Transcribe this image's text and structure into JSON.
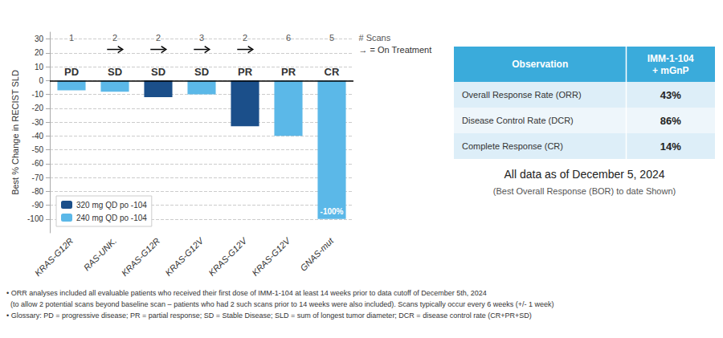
{
  "chart_data": {
    "type": "bar",
    "categories": [
      "KRAS-G12R",
      "RAS-UNK.",
      "KRAS-G12R",
      "KRAS-G12V",
      "KRAS-G12V",
      "KRAS-G12V",
      "GNAS-mut"
    ],
    "series": [
      {
        "name": "320 mg QD po -104",
        "color": "#1B4F8A",
        "values": [
          null,
          null,
          -12,
          null,
          -33,
          null,
          null
        ]
      },
      {
        "name": "240 mg QD po -104",
        "color": "#5BB8E8",
        "values": [
          -7,
          -8,
          null,
          -10,
          null,
          -40,
          -100
        ],
        "value_labels": [
          null,
          null,
          null,
          null,
          null,
          null,
          "-100%"
        ]
      }
    ],
    "ylabel": "Best % Change in RECIST SLD",
    "ylim": [
      -110,
      35
    ],
    "yticks": [
      -100,
      -90,
      -80,
      -70,
      -60,
      -50,
      -40,
      -30,
      -20,
      -10,
      0,
      10,
      20,
      30
    ],
    "grid": true,
    "legend": "lower left",
    "annotations": {
      "responses": [
        "PD",
        "SD",
        "SD",
        "SD",
        "PR",
        "PR",
        "CR"
      ],
      "scans": [
        1,
        2,
        2,
        3,
        2,
        6,
        5
      ],
      "scans_label": "# Scans",
      "on_treatment": [
        false,
        true,
        true,
        true,
        true,
        false,
        false
      ],
      "on_treatment_label": "→ = On Treatment"
    },
    "table": {
      "columns": [
        "Observation",
        "IMM-1-104\n+ mGnP"
      ],
      "rows": [
        [
          "Overall Response Rate (ORR)",
          "43%"
        ],
        [
          "Disease Control Rate (DCR)",
          "86%"
        ],
        [
          "Complete Response (CR)",
          "14%"
        ]
      ],
      "header_color": "#3AABDB",
      "row_colors": [
        "#DDEEF8",
        "#EEF6FB",
        "#DDEEF8"
      ]
    },
    "notes": [
      "All data as of December 5, 2024",
      "(Best Overall Response (BOR) to date Shown)"
    ],
    "footnotes": [
      "• ORR analyses included all evaluable patients who received their first dose of IMM-1-104 at least 14 weeks prior to data cutoff of December 5th, 2024",
      "  (to allow 2 potential scans beyond baseline scan – patients who had 2 such scans prior to 14 weeks were also included). Scans typically occur every 6 weeks (+/- 1 week)",
      "• Glossary: PD = progressive disease; PR = partial response; SD = Stable Disease; SLD = sum of longest tumor diameter; DCR = disease control rate (CR+PR+SD)"
    ]
  }
}
